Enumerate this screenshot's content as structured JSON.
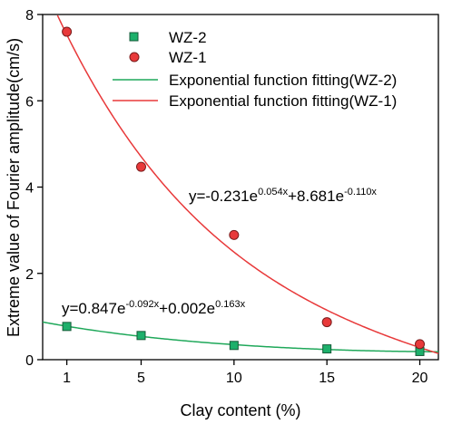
{
  "chart_data": {
    "type": "scatter",
    "xlabel": "Clay content (%)",
    "ylabel": "Extreme value of Fourier amplitude(cm/s)",
    "xlim": [
      -0.3,
      21
    ],
    "ylim": [
      0,
      8
    ],
    "xticks": [
      1,
      5,
      10,
      15,
      20
    ],
    "yticks": [
      0,
      2,
      4,
      6,
      8
    ],
    "grid": false,
    "legend_position": "top-right",
    "series": [
      {
        "name": "WZ-2",
        "kind": "points",
        "marker": "square",
        "color": "#1db06b",
        "x": [
          1,
          5,
          10,
          15,
          20
        ],
        "y": [
          0.77,
          0.56,
          0.33,
          0.25,
          0.19
        ]
      },
      {
        "name": "WZ-1",
        "kind": "points",
        "marker": "circle",
        "color": "#e8393a",
        "x": [
          1,
          5,
          10,
          15,
          20
        ],
        "y": [
          7.6,
          4.47,
          2.89,
          0.87,
          0.36
        ]
      },
      {
        "name": "Exponential function fitting(WZ-2)",
        "kind": "line",
        "color": "#1fa85a",
        "formula": {
          "a": 0.847,
          "b": -0.092,
          "c": 0.002,
          "d": 0.163
        }
      },
      {
        "name": "Exponential function fitting(WZ-1)",
        "kind": "line",
        "color": "#e8393a",
        "formula": {
          "a": -0.231,
          "b": 0.054,
          "c": 8.681,
          "d": -0.11
        }
      }
    ],
    "annotations": [
      {
        "prefix": "y=-0.231e",
        "exp1": "0.054x",
        "mid": "+8.681e",
        "exp2": "-0.110x"
      },
      {
        "prefix": "y=0.847e",
        "exp1": "-0.092x",
        "mid": "+0.002e",
        "exp2": "0.163x"
      }
    ]
  }
}
